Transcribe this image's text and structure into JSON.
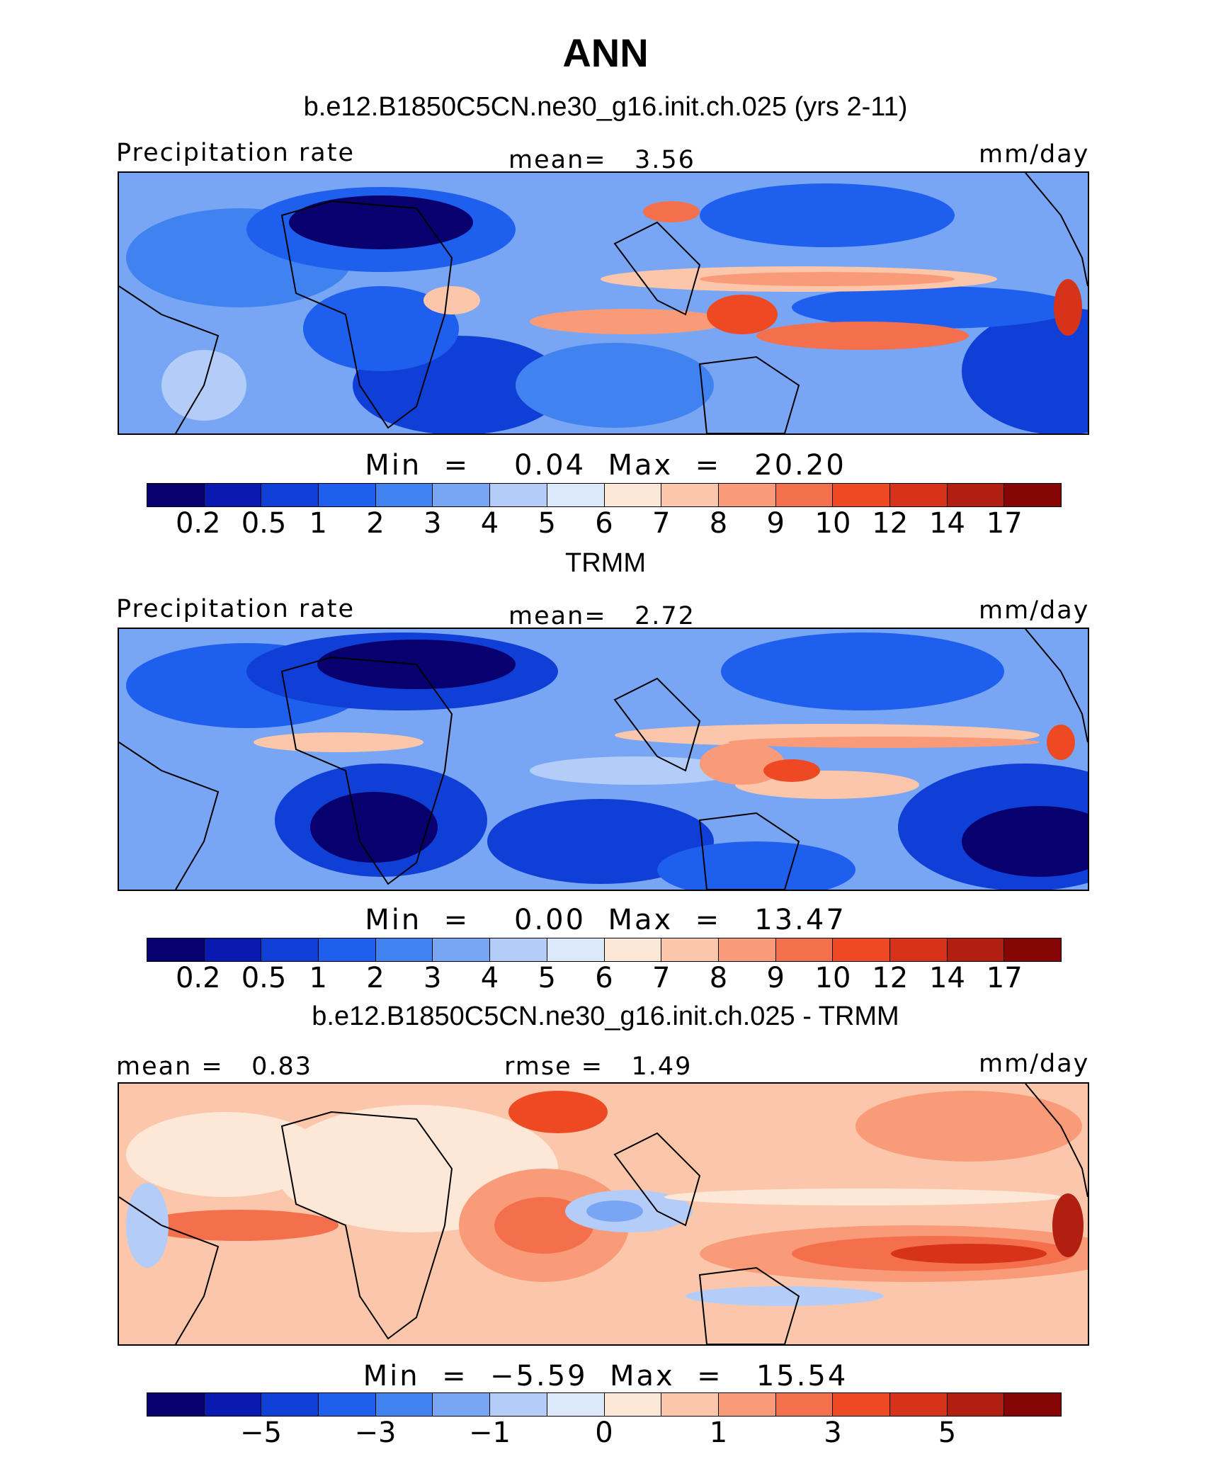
{
  "figure": {
    "title": "ANN",
    "palette": [
      "#08006e",
      "#0a1ab0",
      "#0f3fd6",
      "#1e5fee",
      "#3f82f0",
      "#78a6f4",
      "#b3cdf8",
      "#dce9fb",
      "#fde8d8",
      "#fcc6aa",
      "#f99b78",
      "#f4704d",
      "#ed4a24",
      "#d6331a",
      "#b01f0f",
      "#860505"
    ]
  },
  "chart_data": [
    {
      "type": "heatmap",
      "panel": "model",
      "title": "b.e12.B1850C5CN.ne30_g16.init.ch.025 (yrs 2-11)",
      "left_label": "Precipitation rate",
      "center_label": "mean=   3.56",
      "right_label": "mm/day",
      "minmax": "Min  =    0.04  Max  =   20.20",
      "colorbar_ticks": [
        "0.2",
        "0.5",
        "1",
        "2",
        "3",
        "4",
        "5",
        "6",
        "7",
        "8",
        "9",
        "10",
        "12",
        "14",
        "17"
      ],
      "min": 0.04,
      "max": 20.2,
      "mean": 3.56
    },
    {
      "type": "heatmap",
      "panel": "obs",
      "title": "TRMM",
      "left_label": "Precipitation rate",
      "center_label": "mean=   2.72",
      "right_label": "mm/day",
      "minmax": "Min  =    0.00  Max  =   13.47",
      "colorbar_ticks": [
        "0.2",
        "0.5",
        "1",
        "2",
        "3",
        "4",
        "5",
        "6",
        "7",
        "8",
        "9",
        "10",
        "12",
        "14",
        "17"
      ],
      "min": 0.0,
      "max": 13.47,
      "mean": 2.72
    },
    {
      "type": "heatmap",
      "panel": "difference",
      "title": "b.e12.B1850C5CN.ne30_g16.init.ch.025 - TRMM",
      "left_label": "mean =   0.83",
      "center_label": "rmse =   1.49",
      "right_label": "mm/day",
      "minmax": "Min  =  −5.59  Max  =   15.54",
      "colorbar_ticks": [
        "−5",
        "−3",
        "−1",
        "0",
        "1",
        "3",
        "5"
      ],
      "min": -5.59,
      "max": 15.54,
      "mean": 0.83,
      "rmse": 1.49
    }
  ]
}
